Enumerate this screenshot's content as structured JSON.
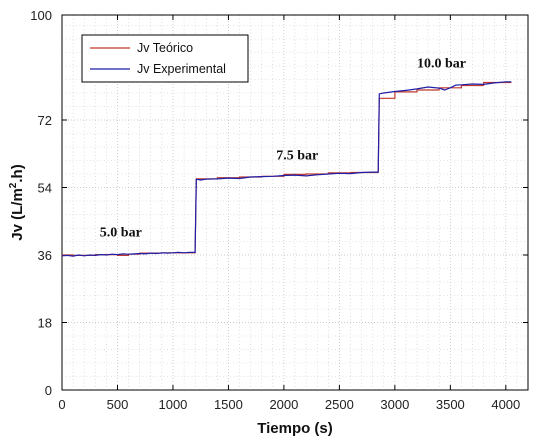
{
  "chart_data": {
    "type": "line",
    "xlabel": "Tiempo (s)",
    "ylabel": "Jv (L/m2.h)",
    "ylabel_parts": {
      "pre": "Jv (L/m",
      "sup": "2",
      "post": ".h)"
    },
    "xlim": [
      0,
      4200
    ],
    "ylim": [
      0,
      100
    ],
    "xticks": [
      0,
      500,
      1000,
      1500,
      2000,
      2500,
      3000,
      3500,
      4000
    ],
    "yticks": [
      0,
      18,
      36,
      54,
      72,
      100
    ],
    "grid": true,
    "legend_position": "top-left",
    "colors": {
      "teorico": "#c0392b",
      "experimental": "#1f1fa8"
    },
    "series": [
      {
        "name": "Jv Teórico",
        "x": [
          0,
          100,
          100,
          300,
          300,
          500,
          500,
          600,
          600,
          700,
          700,
          900,
          900,
          1200,
          1200,
          1210,
          1210,
          1400,
          1400,
          1600,
          1600,
          1800,
          1800,
          2000,
          2000,
          2200,
          2200,
          2400,
          2400,
          2600,
          2600,
          2850,
          2850,
          2860,
          2860,
          3000,
          3000,
          3200,
          3200,
          3400,
          3400,
          3600,
          3600,
          3800,
          3800,
          4050
        ],
        "y": [
          36.0,
          36.0,
          35.9,
          35.9,
          36.1,
          36.1,
          35.9,
          35.9,
          36.2,
          36.2,
          36.5,
          36.5,
          36.6,
          36.6,
          36.6,
          56.3,
          56.3,
          56.3,
          56.6,
          56.6,
          56.8,
          56.8,
          57.0,
          57.0,
          57.5,
          57.5,
          57.6,
          57.6,
          57.9,
          57.9,
          58.0,
          58.0,
          58.0,
          77.8,
          77.8,
          77.8,
          79.5,
          79.5,
          80.0,
          80.0,
          80.6,
          80.6,
          81.2,
          81.2,
          82.0,
          82.0
        ]
      },
      {
        "name": "Jv Experimental",
        "x": [
          0,
          50,
          100,
          150,
          200,
          250,
          300,
          350,
          400,
          450,
          500,
          550,
          600,
          650,
          700,
          750,
          800,
          850,
          900,
          950,
          1000,
          1050,
          1100,
          1150,
          1200,
          1210,
          1250,
          1300,
          1400,
          1500,
          1600,
          1700,
          1800,
          1900,
          2000,
          2100,
          2200,
          2300,
          2400,
          2500,
          2600,
          2700,
          2800,
          2850,
          2860,
          2900,
          3000,
          3100,
          3200,
          3300,
          3400,
          3450,
          3500,
          3550,
          3600,
          3700,
          3800,
          3900,
          4000,
          4050
        ],
        "y": [
          35.8,
          35.9,
          35.7,
          36.0,
          35.8,
          36.0,
          35.9,
          36.1,
          36.0,
          36.2,
          36.1,
          36.3,
          36.2,
          36.3,
          36.4,
          36.3,
          36.5,
          36.4,
          36.6,
          36.5,
          36.6,
          36.7,
          36.6,
          36.7,
          36.7,
          56.2,
          56.0,
          56.2,
          56.3,
          56.5,
          56.4,
          56.8,
          56.9,
          57.0,
          57.2,
          57.3,
          57.1,
          57.4,
          57.6,
          57.8,
          57.7,
          58.0,
          58.1,
          58.1,
          79.0,
          79.2,
          79.6,
          79.9,
          80.3,
          80.8,
          80.5,
          80.0,
          80.6,
          81.3,
          81.4,
          81.6,
          81.5,
          81.9,
          82.2,
          82.2
        ]
      }
    ],
    "annotations": [
      {
        "text": "5.0 bar",
        "x": 530,
        "y": 41
      },
      {
        "text": "7.5 bar",
        "x": 2120,
        "y": 61.5
      },
      {
        "text": "10.0 bar",
        "x": 3420,
        "y": 86
      }
    ]
  }
}
